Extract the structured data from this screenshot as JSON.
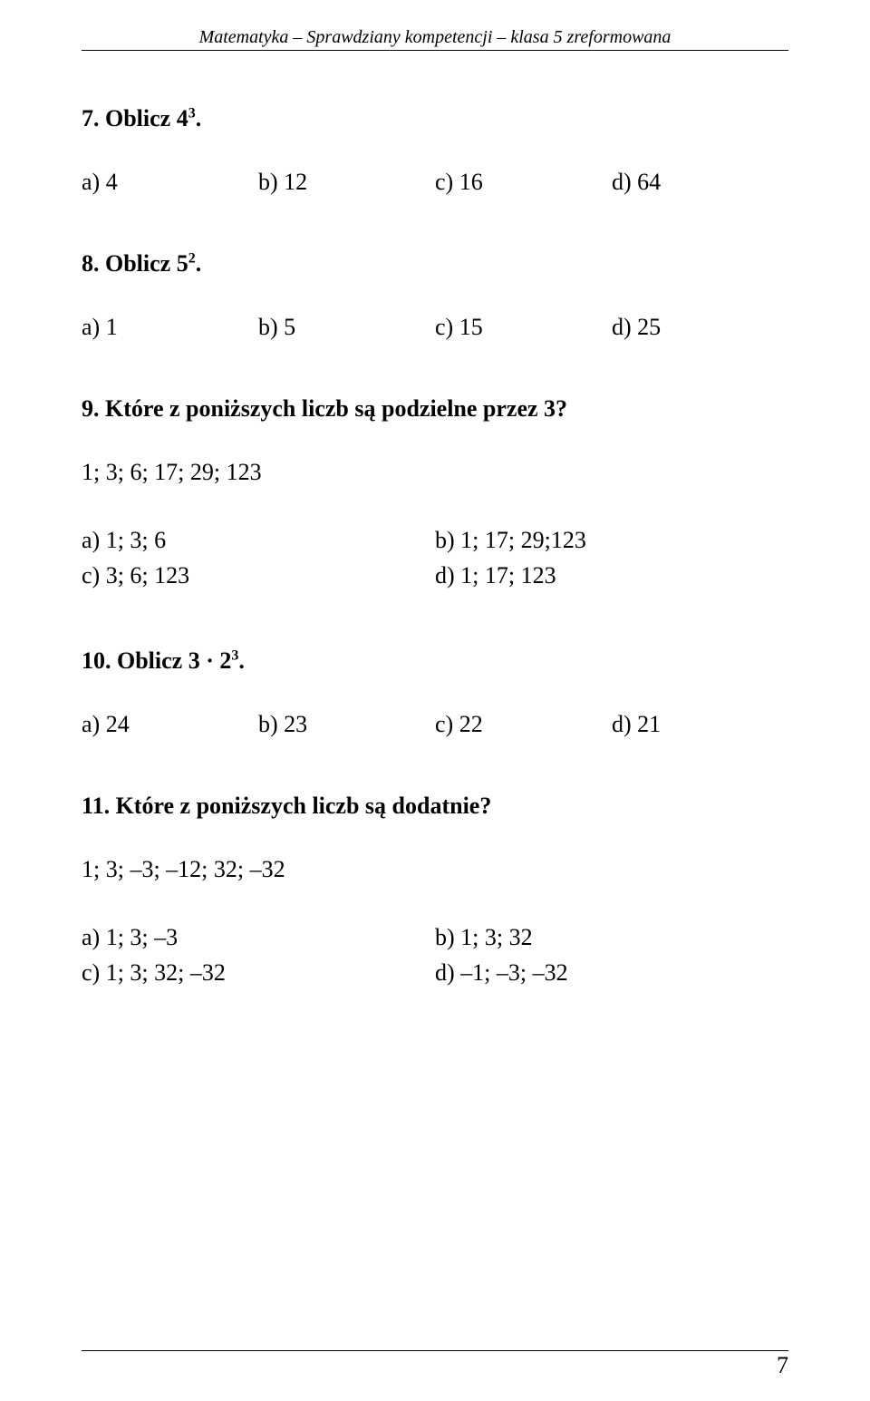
{
  "header": "Matematyka – Sprawdziany kompetencji – klasa 5 zreformowana",
  "q7": {
    "label": "7. Oblicz 4",
    "exp": "3",
    "a": "a) 4",
    "b": "b) 12",
    "c": "c) 16",
    "d": "d) 64"
  },
  "q8": {
    "label": "8. Oblicz 5",
    "exp": "2",
    "a": "a) 1",
    "b": "b) 5",
    "c": "c) 15",
    "d": "d) 25"
  },
  "q9": {
    "label": "9. Które z poniższych liczb są podzielne przez 3?",
    "sub": "1; 3; 6; 17; 29; 123",
    "a": "a) 1; 3; 6",
    "b": "b) 1; 17; 29;123",
    "c": "c) 3; 6; 123",
    "d": "d) 1; 17; 123"
  },
  "q10": {
    "label": "10. Oblicz 3 · 2",
    "exp": "3",
    "a": "a) 24",
    "b": "b) 23",
    "c": "c) 22",
    "d": "d) 21"
  },
  "q11": {
    "label": "11. Które z poniższych liczb są dodatnie?",
    "sub": "1; 3; –3; –12; 32; –32",
    "a": "a) 1; 3; –3",
    "b": "b) 1; 3; 32",
    "c": "c) 1; 3; 32; –32",
    "d": "d) –1; –3; –32"
  },
  "pageNumber": "7"
}
